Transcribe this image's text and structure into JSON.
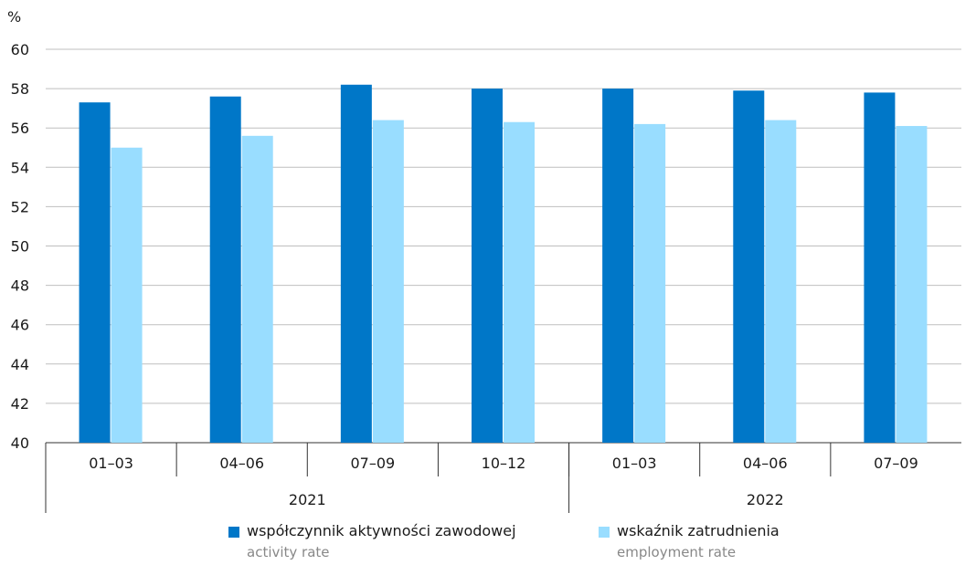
{
  "chart_data": {
    "type": "bar",
    "y_unit_label": "%",
    "ylim": [
      40,
      60
    ],
    "yticks": [
      40,
      42,
      44,
      46,
      48,
      50,
      52,
      54,
      56,
      58,
      60
    ],
    "grid": true,
    "categories": [
      "01–03",
      "04–06",
      "07–09",
      "10–12",
      "01–03",
      "04–06",
      "07–09"
    ],
    "year_groups": [
      {
        "label": "2021",
        "count": 4
      },
      {
        "label": "2022",
        "count": 3
      }
    ],
    "series": [
      {
        "name": "współczynnik aktywności zawodowej",
        "name_en": "activity rate",
        "color": "#0077c8",
        "values": [
          57.3,
          57.6,
          58.2,
          58.0,
          58.0,
          57.9,
          57.8
        ]
      },
      {
        "name": "wskaźnik zatrudnienia",
        "name_en": "employment rate",
        "color": "#99ddff",
        "values": [
          55.0,
          55.6,
          56.4,
          56.3,
          56.2,
          56.4,
          56.1
        ]
      }
    ],
    "legend_position": "bottom"
  }
}
